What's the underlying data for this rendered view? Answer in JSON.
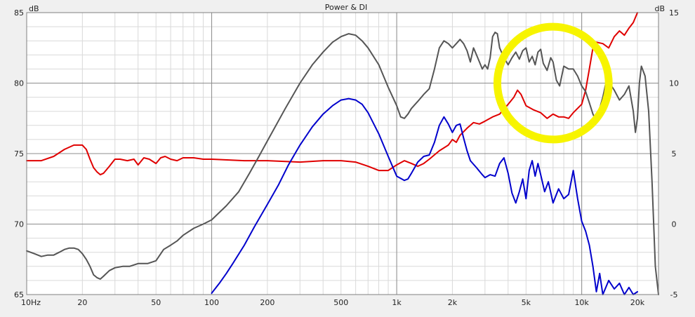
{
  "chart_data": {
    "type": "line",
    "title": "Power & DI",
    "left_axis_unit": "dB",
    "right_axis_unit": "dB",
    "xscale": "log",
    "xlim": [
      10,
      26000
    ],
    "ylim_left": [
      65,
      85
    ],
    "ylim_right": [
      -5,
      15
    ],
    "grid": true,
    "x_ticks": [
      {
        "value": 10,
        "label": "10Hz"
      },
      {
        "value": 20,
        "label": "20"
      },
      {
        "value": 50,
        "label": "50"
      },
      {
        "value": 100,
        "label": "100"
      },
      {
        "value": 200,
        "label": "200"
      },
      {
        "value": 500,
        "label": "500"
      },
      {
        "value": 1000,
        "label": "1k"
      },
      {
        "value": 2000,
        "label": "2k"
      },
      {
        "value": 5000,
        "label": "5k"
      },
      {
        "value": 10000,
        "label": "10k"
      },
      {
        "value": 20000,
        "label": "20k"
      }
    ],
    "y_left_ticks": [
      {
        "value": 65,
        "label": "65"
      },
      {
        "value": 70,
        "label": "70"
      },
      {
        "value": 75,
        "label": "75"
      },
      {
        "value": 80,
        "label": "80"
      },
      {
        "value": 85,
        "label": "85"
      }
    ],
    "y_right_ticks": [
      {
        "value": -5,
        "label": "-5"
      },
      {
        "value": 0,
        "label": "0"
      },
      {
        "value": 5,
        "label": "5"
      },
      {
        "value": 10,
        "label": "10"
      },
      {
        "value": 15,
        "label": "15"
      }
    ],
    "series": [
      {
        "color": "#e00000",
        "axis": "left",
        "points": [
          [
            10,
            74.5
          ],
          [
            12,
            74.5
          ],
          [
            14,
            74.8
          ],
          [
            16,
            75.3
          ],
          [
            18,
            75.6
          ],
          [
            20,
            75.6
          ],
          [
            21,
            75.3
          ],
          [
            22,
            74.6
          ],
          [
            23,
            74.0
          ],
          [
            24,
            73.7
          ],
          [
            25,
            73.5
          ],
          [
            26,
            73.6
          ],
          [
            28,
            74.1
          ],
          [
            30,
            74.6
          ],
          [
            32,
            74.6
          ],
          [
            35,
            74.5
          ],
          [
            38,
            74.6
          ],
          [
            40,
            74.2
          ],
          [
            43,
            74.7
          ],
          [
            46,
            74.6
          ],
          [
            50,
            74.3
          ],
          [
            53,
            74.7
          ],
          [
            56,
            74.8
          ],
          [
            60,
            74.6
          ],
          [
            65,
            74.5
          ],
          [
            70,
            74.7
          ],
          [
            80,
            74.7
          ],
          [
            90,
            74.6
          ],
          [
            100,
            74.6
          ],
          [
            150,
            74.5
          ],
          [
            200,
            74.5
          ],
          [
            300,
            74.4
          ],
          [
            400,
            74.5
          ],
          [
            500,
            74.5
          ],
          [
            600,
            74.4
          ],
          [
            700,
            74.1
          ],
          [
            800,
            73.8
          ],
          [
            900,
            73.8
          ],
          [
            1000,
            74.2
          ],
          [
            1100,
            74.5
          ],
          [
            1200,
            74.3
          ],
          [
            1300,
            74.1
          ],
          [
            1400,
            74.3
          ],
          [
            1500,
            74.6
          ],
          [
            1700,
            75.2
          ],
          [
            1900,
            75.6
          ],
          [
            2000,
            76.0
          ],
          [
            2100,
            75.8
          ],
          [
            2200,
            76.3
          ],
          [
            2400,
            76.8
          ],
          [
            2600,
            77.2
          ],
          [
            2800,
            77.1
          ],
          [
            3000,
            77.3
          ],
          [
            3300,
            77.6
          ],
          [
            3600,
            77.8
          ],
          [
            4000,
            78.5
          ],
          [
            4300,
            79.0
          ],
          [
            4500,
            79.5
          ],
          [
            4700,
            79.2
          ],
          [
            5000,
            78.4
          ],
          [
            5500,
            78.1
          ],
          [
            6000,
            77.9
          ],
          [
            6500,
            77.5
          ],
          [
            7000,
            77.8
          ],
          [
            7500,
            77.6
          ],
          [
            8000,
            77.6
          ],
          [
            8500,
            77.5
          ],
          [
            9000,
            77.9
          ],
          [
            10000,
            78.5
          ],
          [
            10500,
            79.5
          ],
          [
            11000,
            81.0
          ],
          [
            11500,
            82.5
          ],
          [
            12000,
            82.9
          ],
          [
            13000,
            82.8
          ],
          [
            14000,
            82.5
          ],
          [
            15000,
            83.3
          ],
          [
            16000,
            83.7
          ],
          [
            17000,
            83.4
          ],
          [
            18000,
            83.9
          ],
          [
            19000,
            84.3
          ],
          [
            20000,
            85.0
          ]
        ]
      },
      {
        "color": "#555555",
        "axis": "left",
        "points": [
          [
            10,
            68.1
          ],
          [
            11,
            67.9
          ],
          [
            12,
            67.7
          ],
          [
            13,
            67.8
          ],
          [
            14,
            67.8
          ],
          [
            15,
            68.0
          ],
          [
            16,
            68.2
          ],
          [
            17,
            68.3
          ],
          [
            18,
            68.3
          ],
          [
            19,
            68.2
          ],
          [
            20,
            67.9
          ],
          [
            21,
            67.5
          ],
          [
            22,
            67.0
          ],
          [
            23,
            66.4
          ],
          [
            24,
            66.2
          ],
          [
            25,
            66.1
          ],
          [
            26,
            66.3
          ],
          [
            28,
            66.7
          ],
          [
            30,
            66.9
          ],
          [
            33,
            67.0
          ],
          [
            36,
            67.0
          ],
          [
            40,
            67.2
          ],
          [
            45,
            67.2
          ],
          [
            50,
            67.4
          ],
          [
            55,
            68.2
          ],
          [
            60,
            68.5
          ],
          [
            65,
            68.8
          ],
          [
            70,
            69.2
          ],
          [
            80,
            69.7
          ],
          [
            90,
            70.0
          ],
          [
            100,
            70.3
          ],
          [
            120,
            71.3
          ],
          [
            140,
            72.3
          ],
          [
            160,
            73.6
          ],
          [
            180,
            74.8
          ],
          [
            200,
            75.9
          ],
          [
            250,
            78.2
          ],
          [
            300,
            80.0
          ],
          [
            350,
            81.3
          ],
          [
            400,
            82.2
          ],
          [
            450,
            82.9
          ],
          [
            500,
            83.3
          ],
          [
            550,
            83.5
          ],
          [
            600,
            83.4
          ],
          [
            650,
            83.0
          ],
          [
            700,
            82.5
          ],
          [
            800,
            81.3
          ],
          [
            900,
            79.7
          ],
          [
            1000,
            78.4
          ],
          [
            1050,
            77.6
          ],
          [
            1100,
            77.5
          ],
          [
            1150,
            77.8
          ],
          [
            1200,
            78.2
          ],
          [
            1300,
            78.7
          ],
          [
            1400,
            79.2
          ],
          [
            1500,
            79.6
          ],
          [
            1600,
            81.0
          ],
          [
            1700,
            82.5
          ],
          [
            1800,
            83.0
          ],
          [
            1900,
            82.8
          ],
          [
            2000,
            82.5
          ],
          [
            2100,
            82.8
          ],
          [
            2200,
            83.1
          ],
          [
            2300,
            82.8
          ],
          [
            2400,
            82.3
          ],
          [
            2500,
            81.5
          ],
          [
            2600,
            82.5
          ],
          [
            2700,
            82.0
          ],
          [
            2800,
            81.5
          ],
          [
            2900,
            81.0
          ],
          [
            3000,
            81.3
          ],
          [
            3100,
            81.0
          ],
          [
            3200,
            81.8
          ],
          [
            3300,
            83.3
          ],
          [
            3400,
            83.6
          ],
          [
            3500,
            83.5
          ],
          [
            3600,
            82.5
          ],
          [
            3800,
            81.8
          ],
          [
            4000,
            81.3
          ],
          [
            4200,
            81.8
          ],
          [
            4400,
            82.2
          ],
          [
            4600,
            81.7
          ],
          [
            4800,
            82.3
          ],
          [
            5000,
            82.5
          ],
          [
            5200,
            81.5
          ],
          [
            5400,
            81.9
          ],
          [
            5600,
            81.3
          ],
          [
            5800,
            82.2
          ],
          [
            6000,
            82.4
          ],
          [
            6200,
            81.4
          ],
          [
            6500,
            80.9
          ],
          [
            6800,
            81.8
          ],
          [
            7000,
            81.5
          ],
          [
            7300,
            80.2
          ],
          [
            7600,
            79.8
          ],
          [
            8000,
            81.2
          ],
          [
            8500,
            81.0
          ],
          [
            9000,
            81.0
          ],
          [
            9500,
            80.5
          ],
          [
            10000,
            79.8
          ],
          [
            10500,
            79.4
          ],
          [
            11000,
            78.6
          ],
          [
            11500,
            77.8
          ],
          [
            12000,
            77.3
          ],
          [
            12500,
            78.2
          ],
          [
            13000,
            79.0
          ],
          [
            13500,
            80.0
          ],
          [
            14000,
            80.1
          ],
          [
            15000,
            79.5
          ],
          [
            16000,
            78.8
          ],
          [
            17000,
            79.2
          ],
          [
            18000,
            79.8
          ],
          [
            19000,
            78.0
          ],
          [
            19500,
            76.5
          ],
          [
            20000,
            77.5
          ],
          [
            20500,
            80.0
          ],
          [
            21000,
            81.2
          ],
          [
            22000,
            80.5
          ],
          [
            23000,
            78.0
          ],
          [
            24000,
            73.0
          ],
          [
            25000,
            67.0
          ],
          [
            26000,
            65.0
          ]
        ]
      },
      {
        "color": "#0000cc",
        "axis": "right",
        "points": [
          [
            100,
            -4.9
          ],
          [
            110,
            -4.2
          ],
          [
            120,
            -3.5
          ],
          [
            130,
            -2.8
          ],
          [
            150,
            -1.5
          ],
          [
            170,
            -0.2
          ],
          [
            200,
            1.4
          ],
          [
            230,
            2.8
          ],
          [
            260,
            4.2
          ],
          [
            300,
            5.6
          ],
          [
            350,
            6.9
          ],
          [
            400,
            7.8
          ],
          [
            450,
            8.4
          ],
          [
            500,
            8.8
          ],
          [
            550,
            8.9
          ],
          [
            600,
            8.8
          ],
          [
            650,
            8.5
          ],
          [
            700,
            7.9
          ],
          [
            800,
            6.4
          ],
          [
            900,
            4.8
          ],
          [
            1000,
            3.4
          ],
          [
            1100,
            3.1
          ],
          [
            1150,
            3.2
          ],
          [
            1200,
            3.6
          ],
          [
            1300,
            4.4
          ],
          [
            1400,
            4.8
          ],
          [
            1500,
            4.9
          ],
          [
            1600,
            5.8
          ],
          [
            1700,
            7.0
          ],
          [
            1800,
            7.6
          ],
          [
            1900,
            7.1
          ],
          [
            2000,
            6.5
          ],
          [
            2100,
            7.0
          ],
          [
            2200,
            7.1
          ],
          [
            2300,
            6.1
          ],
          [
            2400,
            5.2
          ],
          [
            2500,
            4.5
          ],
          [
            2700,
            4.0
          ],
          [
            2900,
            3.5
          ],
          [
            3000,
            3.3
          ],
          [
            3200,
            3.5
          ],
          [
            3400,
            3.4
          ],
          [
            3600,
            4.3
          ],
          [
            3800,
            4.7
          ],
          [
            4000,
            3.6
          ],
          [
            4200,
            2.2
          ],
          [
            4400,
            1.5
          ],
          [
            4600,
            2.3
          ],
          [
            4800,
            3.2
          ],
          [
            5000,
            1.8
          ],
          [
            5200,
            3.8
          ],
          [
            5400,
            4.5
          ],
          [
            5600,
            3.4
          ],
          [
            5800,
            4.3
          ],
          [
            6000,
            3.5
          ],
          [
            6300,
            2.3
          ],
          [
            6600,
            3.0
          ],
          [
            7000,
            1.5
          ],
          [
            7500,
            2.5
          ],
          [
            8000,
            1.8
          ],
          [
            8500,
            2.1
          ],
          [
            9000,
            3.8
          ],
          [
            9500,
            1.8
          ],
          [
            10000,
            0.2
          ],
          [
            10500,
            -0.5
          ],
          [
            11000,
            -1.5
          ],
          [
            11500,
            -3.0
          ],
          [
            12000,
            -4.8
          ],
          [
            12500,
            -3.5
          ],
          [
            13000,
            -5.0
          ],
          [
            14000,
            -4.0
          ],
          [
            15000,
            -4.6
          ],
          [
            16000,
            -4.2
          ],
          [
            17000,
            -5.0
          ],
          [
            18000,
            -4.5
          ],
          [
            19000,
            -5.0
          ],
          [
            20000,
            -4.8
          ]
        ]
      }
    ],
    "annotation": {
      "shape": "ellipse",
      "color": "#f7f400",
      "x_range": [
        3500,
        14000
      ],
      "y_range_left": [
        76.0,
        84.0
      ]
    }
  }
}
